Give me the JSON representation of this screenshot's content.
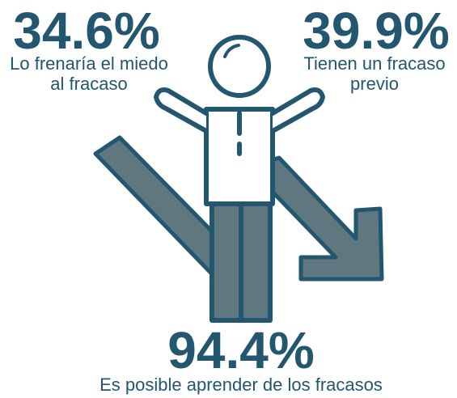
{
  "stats": [
    {
      "value": "34.6%",
      "label": [
        "Lo frenaría el miedo",
        "al fracaso"
      ]
    },
    {
      "value": "39.9%",
      "label": [
        "Tienen un fracaso",
        "previo"
      ]
    },
    {
      "value": "94.4%",
      "label": [
        "Es posible aprender de los fracasos"
      ]
    }
  ]
}
